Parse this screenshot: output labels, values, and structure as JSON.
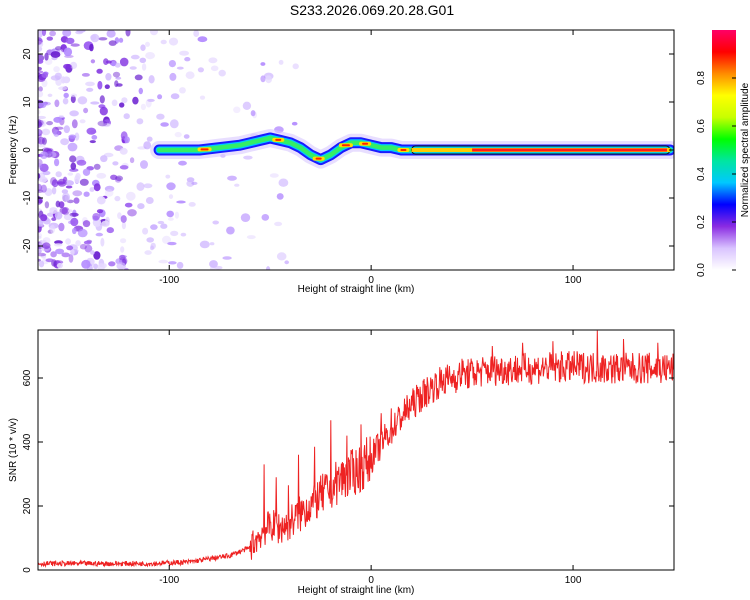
{
  "title": "S233.2026.069.20.28.G01",
  "colors": {
    "line": "#ee2222",
    "frame": "#000000",
    "ridge_outline": "#111111"
  },
  "chart_data": [
    {
      "type": "heatmap",
      "name": "spectrogram",
      "xlabel": "Height of straight line (km)",
      "ylabel": "Frequency (Hz)",
      "xlim": [
        -165,
        150
      ],
      "ylim": [
        -25,
        25
      ],
      "xticks": [
        {
          "value": -100,
          "label": "-100"
        },
        {
          "value": 0,
          "label": "0"
        },
        {
          "value": 100,
          "label": "100"
        }
      ],
      "yticks": [
        {
          "value": -20,
          "label": "-20"
        },
        {
          "value": -10,
          "label": "-10"
        },
        {
          "value": 0,
          "label": "0"
        },
        {
          "value": 10,
          "label": "10"
        },
        {
          "value": 20,
          "label": "20"
        }
      ],
      "ridge_frequency": [
        [
          -105,
          0.0
        ],
        [
          -95,
          0.0
        ],
        [
          -85,
          0.0
        ],
        [
          -75,
          0.5
        ],
        [
          -65,
          1.0
        ],
        [
          -60,
          1.5
        ],
        [
          -55,
          2.0
        ],
        [
          -50,
          2.5
        ],
        [
          -45,
          2.0
        ],
        [
          -40,
          1.5
        ],
        [
          -35,
          0.5
        ],
        [
          -30,
          -1.0
        ],
        [
          -25,
          -2.0
        ],
        [
          -20,
          -1.0
        ],
        [
          -15,
          0.5
        ],
        [
          -10,
          1.5
        ],
        [
          -5,
          1.5
        ],
        [
          0,
          1.0
        ],
        [
          5,
          0.5
        ],
        [
          10,
          0.5
        ],
        [
          15,
          0.0
        ],
        [
          20,
          0.0
        ],
        [
          30,
          0.0
        ],
        [
          50,
          0.0
        ],
        [
          100,
          0.0
        ],
        [
          148,
          0.0
        ]
      ],
      "amplitude_notes": "noise region x<-105 with scattered low amplitude; ridge strongest beyond x≈50",
      "colorbar": {
        "label": "Normalized spectral amplitude",
        "range": [
          0,
          1
        ],
        "ticks": [
          {
            "value": 0.0,
            "label": "0.0"
          },
          {
            "value": 0.2,
            "label": "0.2"
          },
          {
            "value": 0.4,
            "label": "0.4"
          },
          {
            "value": 0.6,
            "label": "0.6"
          },
          {
            "value": 0.8,
            "label": "0.8"
          }
        ],
        "colors": [
          "#ffffff",
          "#d9c3ff",
          "#8a2be2",
          "#0000ff",
          "#00c8ff",
          "#00e6a0",
          "#00ff00",
          "#c8ff00",
          "#ffff00",
          "#ff8c00",
          "#ff0000",
          "#ff0066"
        ]
      }
    },
    {
      "type": "line",
      "name": "snr",
      "xlabel": "Height of straight line (km)",
      "ylabel": "SNR (10 * v/v)",
      "xlim": [
        -165,
        150
      ],
      "ylim": [
        0,
        750
      ],
      "xticks": [
        {
          "value": -100,
          "label": "-100"
        },
        {
          "value": 0,
          "label": "0"
        },
        {
          "value": 100,
          "label": "100"
        }
      ],
      "yticks": [
        {
          "value": 0,
          "label": "0"
        },
        {
          "value": 200,
          "label": "200"
        },
        {
          "value": 400,
          "label": "400"
        },
        {
          "value": 600,
          "label": "600"
        }
      ],
      "trend": [
        [
          -165,
          20
        ],
        [
          -110,
          20
        ],
        [
          -90,
          25
        ],
        [
          -80,
          35
        ],
        [
          -70,
          45
        ],
        [
          -60,
          70
        ],
        [
          -55,
          110
        ],
        [
          -50,
          140
        ],
        [
          -45,
          130
        ],
        [
          -40,
          150
        ],
        [
          -35,
          175
        ],
        [
          -30,
          205
        ],
        [
          -25,
          230
        ],
        [
          -20,
          255
        ],
        [
          -15,
          285
        ],
        [
          -10,
          300
        ],
        [
          -5,
          320
        ],
        [
          0,
          350
        ],
        [
          5,
          395
        ],
        [
          10,
          440
        ],
        [
          15,
          480
        ],
        [
          20,
          515
        ],
        [
          25,
          545
        ],
        [
          30,
          570
        ],
        [
          35,
          590
        ],
        [
          40,
          600
        ],
        [
          50,
          615
        ],
        [
          60,
          625
        ],
        [
          80,
          630
        ],
        [
          100,
          635
        ],
        [
          120,
          630
        ],
        [
          150,
          630
        ]
      ],
      "spikes": [
        [
          -53,
          330
        ],
        [
          -47,
          290
        ],
        [
          -41,
          265
        ],
        [
          -36,
          360
        ],
        [
          -28,
          385
        ],
        [
          -20,
          468
        ],
        [
          -12,
          420
        ],
        [
          -5,
          455
        ],
        [
          5,
          490
        ],
        [
          10,
          505
        ],
        [
          20,
          545
        ],
        [
          45,
          660
        ],
        [
          60,
          700
        ],
        [
          75,
          710
        ],
        [
          90,
          715
        ],
        [
          112,
          748
        ],
        [
          125,
          722
        ],
        [
          142,
          710
        ]
      ]
    }
  ]
}
